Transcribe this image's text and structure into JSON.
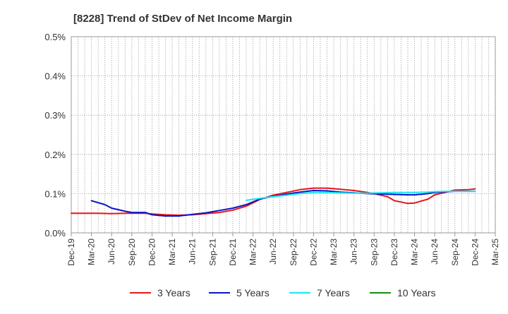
{
  "chart_data": {
    "type": "line",
    "title": "[8228]  Trend of StDev of Net Income Margin",
    "xlabel": "",
    "ylabel": "",
    "ylim": [
      0,
      0.5
    ],
    "y_ticks": [
      {
        "value": 0.0,
        "label": "0.0%"
      },
      {
        "value": 0.1,
        "label": "0.1%"
      },
      {
        "value": 0.2,
        "label": "0.2%"
      },
      {
        "value": 0.3,
        "label": "0.3%"
      },
      {
        "value": 0.4,
        "label": "0.4%"
      },
      {
        "value": 0.5,
        "label": "0.5%"
      }
    ],
    "x_start": "Dec-19",
    "x_end": "Mar-25",
    "x_tick_labels": [
      "Dec-19",
      "Mar-20",
      "Jun-20",
      "Sep-20",
      "Dec-20",
      "Mar-21",
      "Jun-21",
      "Sep-21",
      "Dec-21",
      "Mar-22",
      "Jun-22",
      "Sep-22",
      "Dec-22",
      "Mar-23",
      "Jun-23",
      "Sep-23",
      "Dec-23",
      "Mar-24",
      "Jun-24",
      "Sep-24",
      "Dec-24",
      "Mar-25"
    ],
    "grid": true,
    "legend_position": "bottom",
    "series": [
      {
        "name": "3 Years",
        "color": "#e8141b",
        "points": [
          [
            "Dec-19",
            0.05
          ],
          [
            "Feb-20",
            0.05
          ],
          [
            "Apr-20",
            0.05
          ],
          [
            "Jun-20",
            0.049
          ],
          [
            "Aug-20",
            0.05
          ],
          [
            "Oct-20",
            0.05
          ],
          [
            "Nov-20",
            0.05
          ],
          [
            "Dec-20",
            0.048
          ],
          [
            "Feb-21",
            0.046
          ],
          [
            "Apr-21",
            0.045
          ],
          [
            "Jun-21",
            0.046
          ],
          [
            "Aug-21",
            0.049
          ],
          [
            "Oct-21",
            0.052
          ],
          [
            "Dec-21",
            0.058
          ],
          [
            "Feb-22",
            0.068
          ],
          [
            "Apr-22",
            0.085
          ],
          [
            "Jun-22",
            0.096
          ],
          [
            "Aug-22",
            0.103
          ],
          [
            "Oct-22",
            0.11
          ],
          [
            "Dec-22",
            0.114
          ],
          [
            "Feb-23",
            0.114
          ],
          [
            "Apr-23",
            0.111
          ],
          [
            "Jun-23",
            0.108
          ],
          [
            "Aug-23",
            0.103
          ],
          [
            "Sep-23",
            0.1
          ],
          [
            "Nov-23",
            0.092
          ],
          [
            "Dec-23",
            0.082
          ],
          [
            "Feb-24",
            0.075
          ],
          [
            "Mar-24",
            0.076
          ],
          [
            "May-24",
            0.086
          ],
          [
            "Jun-24",
            0.097
          ],
          [
            "Aug-24",
            0.105
          ],
          [
            "Sep-24",
            0.109
          ],
          [
            "Nov-24",
            0.11
          ],
          [
            "Dec-24",
            0.112
          ]
        ]
      },
      {
        "name": "5 Years",
        "color": "#0a14c8",
        "points": [
          [
            "Mar-20",
            0.082
          ],
          [
            "May-20",
            0.072
          ],
          [
            "Jun-20",
            0.063
          ],
          [
            "Aug-20",
            0.055
          ],
          [
            "Sep-20",
            0.052
          ],
          [
            "Nov-20",
            0.052
          ],
          [
            "Dec-20",
            0.046
          ],
          [
            "Feb-21",
            0.043
          ],
          [
            "Apr-21",
            0.043
          ],
          [
            "Jun-21",
            0.047
          ],
          [
            "Aug-21",
            0.051
          ],
          [
            "Oct-21",
            0.057
          ],
          [
            "Dec-21",
            0.063
          ],
          [
            "Feb-22",
            0.072
          ],
          [
            "Apr-22",
            0.086
          ],
          [
            "Jun-22",
            0.093
          ],
          [
            "Aug-22",
            0.099
          ],
          [
            "Oct-22",
            0.104
          ],
          [
            "Dec-22",
            0.108
          ],
          [
            "Feb-23",
            0.107
          ],
          [
            "Apr-23",
            0.104
          ],
          [
            "Jun-23",
            0.102
          ],
          [
            "Aug-23",
            0.1
          ],
          [
            "Oct-23",
            0.099
          ],
          [
            "Dec-23",
            0.098
          ],
          [
            "Feb-24",
            0.097
          ],
          [
            "Mar-24",
            0.097
          ],
          [
            "May-24",
            0.1
          ],
          [
            "Jun-24",
            0.103
          ],
          [
            "Aug-24",
            0.105
          ],
          [
            "Sep-24",
            0.106
          ],
          [
            "Nov-24",
            0.106
          ],
          [
            "Dec-24",
            0.106
          ]
        ]
      },
      {
        "name": "7 Years",
        "color": "#19e6f0",
        "points": [
          [
            "Feb-22",
            0.083
          ],
          [
            "Apr-22",
            0.088
          ],
          [
            "Jun-22",
            0.092
          ],
          [
            "Aug-22",
            0.096
          ],
          [
            "Oct-22",
            0.1
          ],
          [
            "Dec-22",
            0.103
          ],
          [
            "Feb-23",
            0.103
          ],
          [
            "Apr-23",
            0.102
          ],
          [
            "Jun-23",
            0.101
          ],
          [
            "Aug-23",
            0.101
          ],
          [
            "Oct-23",
            0.102
          ],
          [
            "Dec-23",
            0.103
          ],
          [
            "Feb-24",
            0.103
          ],
          [
            "Mar-24",
            0.103
          ],
          [
            "May-24",
            0.104
          ],
          [
            "Jun-24",
            0.105
          ],
          [
            "Aug-24",
            0.106
          ],
          [
            "Sep-24",
            0.106
          ],
          [
            "Nov-24",
            0.106
          ],
          [
            "Dec-24",
            0.106
          ]
        ]
      },
      {
        "name": "10 Years",
        "color": "#148c14",
        "points": []
      }
    ]
  }
}
